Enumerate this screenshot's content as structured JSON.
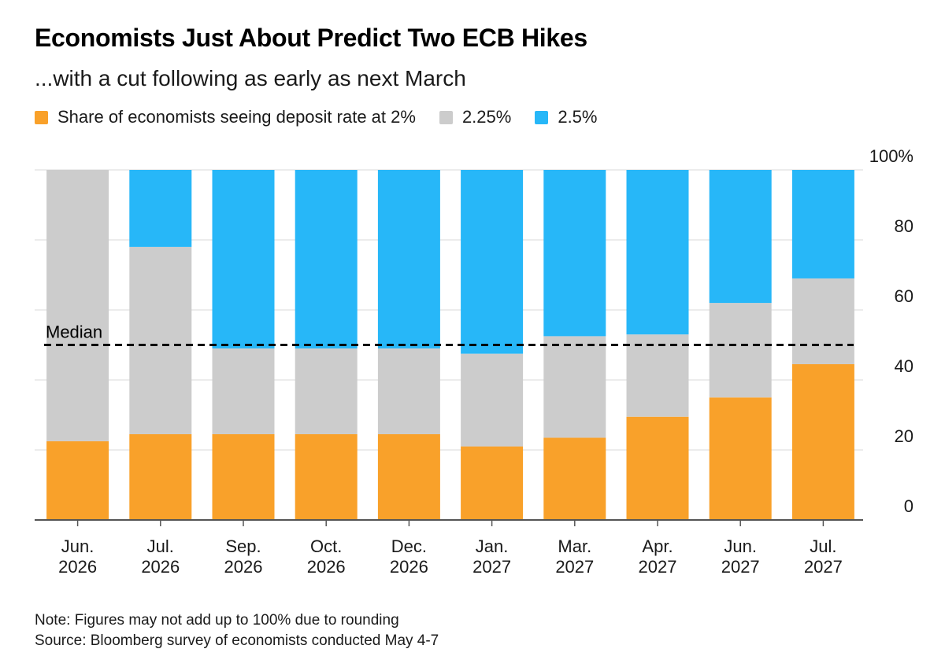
{
  "title": "Economists Just About Predict Two ECB Hikes",
  "subtitle": "...with a cut following as early as next March",
  "legend": [
    {
      "label": "Share of economists seeing deposit rate at 2%",
      "color": "#f9a12a"
    },
    {
      "label": "2.25%",
      "color": "#cccccc"
    },
    {
      "label": "2.5%",
      "color": "#27b7f8"
    }
  ],
  "notes": {
    "note": "Note: Figures may not add up to 100% due to rounding",
    "source": "Source: Bloomberg survey of economists conducted May 4-7"
  },
  "chart_data": {
    "type": "bar",
    "stacked": true,
    "categories": [
      [
        "Jun.",
        "2026"
      ],
      [
        "Jul.",
        "2026"
      ],
      [
        "Sep.",
        "2026"
      ],
      [
        "Oct.",
        "2026"
      ],
      [
        "Dec.",
        "2026"
      ],
      [
        "Jan.",
        "2027"
      ],
      [
        "Mar.",
        "2027"
      ],
      [
        "Apr.",
        "2027"
      ],
      [
        "Jun.",
        "2027"
      ],
      [
        "Jul.",
        "2027"
      ]
    ],
    "series": [
      {
        "name": "Share of economists seeing deposit rate at 2%",
        "color": "#f9a12a",
        "values": [
          22.5,
          24.5,
          24.5,
          24.5,
          24.5,
          21,
          23.5,
          29.5,
          35,
          44.5
        ]
      },
      {
        "name": "2.25%",
        "color": "#cccccc",
        "values": [
          77.5,
          53.5,
          24.5,
          24.5,
          24.5,
          26.5,
          29,
          23.5,
          27,
          24.5
        ]
      },
      {
        "name": "2.5%",
        "color": "#27b7f8",
        "values": [
          0,
          22,
          51,
          51,
          51,
          52.5,
          47.5,
          47,
          38,
          31
        ]
      }
    ],
    "ylim": [
      0,
      100
    ],
    "yticks": [
      {
        "value": 0,
        "label": "0"
      },
      {
        "value": 20,
        "label": "20"
      },
      {
        "value": 40,
        "label": "40"
      },
      {
        "value": 60,
        "label": "60"
      },
      {
        "value": 80,
        "label": "80"
      },
      {
        "value": 100,
        "label": "100%"
      }
    ],
    "y_axis_position": "right",
    "grid": true,
    "reference_line": {
      "value": 50,
      "label": "Median",
      "style": "dashed"
    }
  }
}
